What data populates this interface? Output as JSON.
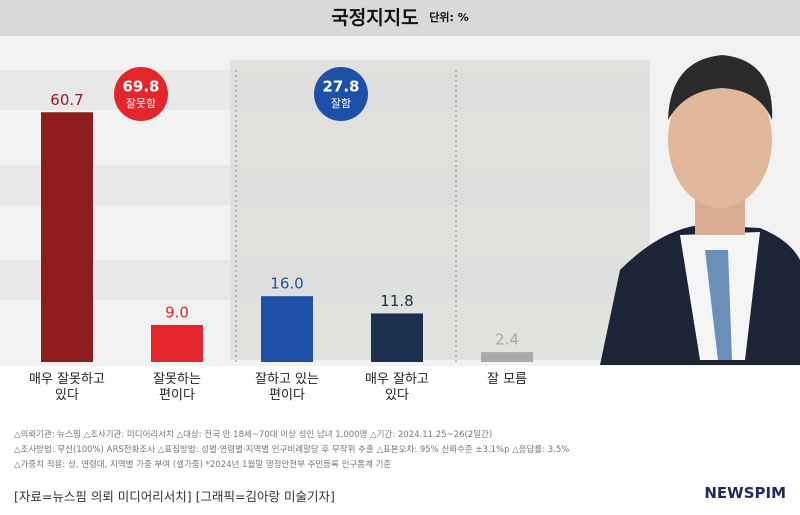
{
  "title": "국정지지도",
  "unit": "단위: %",
  "chart_data": {
    "type": "bar",
    "categories": [
      "매우 잘못하고\n있다",
      "잘못하는\n편이다",
      "잘하고 있는\n편이다",
      "매우 잘하고\n있다",
      "잘 모름"
    ],
    "values": [
      60.7,
      9.0,
      16.0,
      11.8,
      2.4
    ],
    "value_labels": [
      "60.7",
      "9.0",
      "16.0",
      "11.8",
      "2.4"
    ],
    "colors": [
      "#8e1c1c",
      "#e3262b",
      "#1f50a8",
      "#1d2f4f",
      "#a9a9a9"
    ],
    "ylim": [
      0,
      70
    ],
    "annotations": [
      {
        "value": 69.8,
        "label": "잘못함",
        "color": "#e3262b"
      },
      {
        "value": 27.8,
        "label": "잘함",
        "color": "#1f50a8"
      }
    ]
  },
  "notes": [
    "△의뢰기관: 뉴스핌  △조사기관: 미디어리서치  △대상: 전국 만 18세~70대 이상 성인 남녀 1,000명  △기간: 2024.11.25~26(2일간)",
    "△조사방법: 무선(100%) ARS전화조사  △표집방법: 성별·연령별·지역별 인구비례할당 후 무작위 추출  △표본오차: 95% 신뢰수준 ±3.1%p  △응답률: 3.5%",
    "△가중치 적용: 성, 연령대, 지역별 가중 부여 (셀가중) *2024년 1월말 행정안전부 주민등록 인구통계 기준"
  ],
  "source": "[자료=뉴스핌 의뢰 미디어리서치] [그래픽=김아랑 미술기자]",
  "logo": "NEWSPIM"
}
